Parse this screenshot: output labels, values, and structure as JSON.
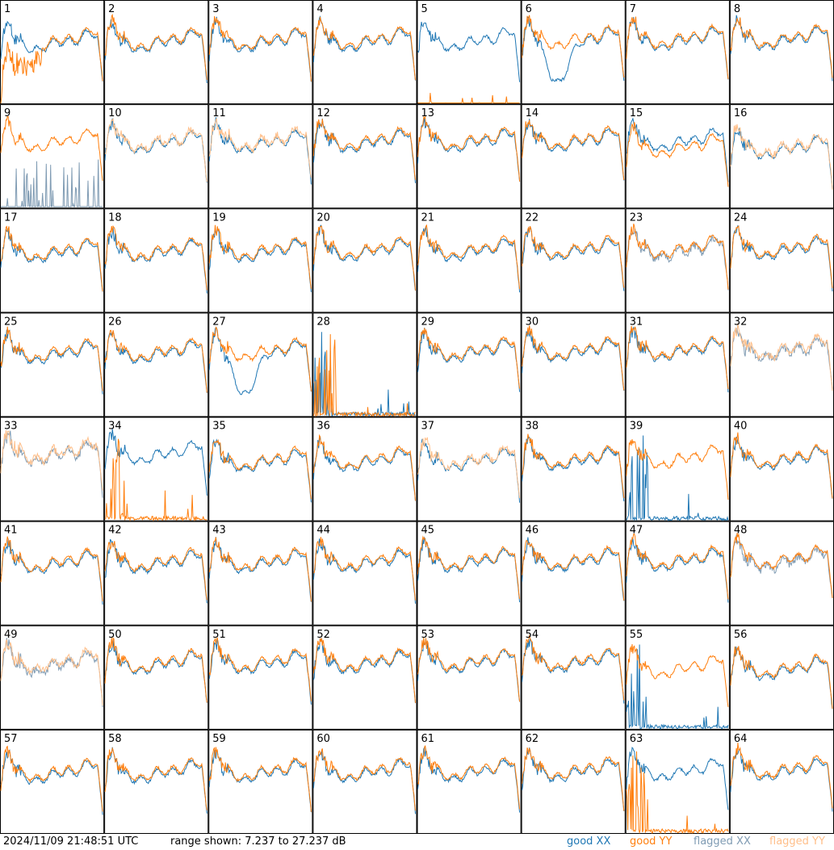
{
  "footer": {
    "timestamp": "2024/11/09 21:48:51 UTC",
    "range_label": "range shown: 7.237 to 27.237 dB"
  },
  "legend": [
    {
      "label": "good XX",
      "color": "#1f77b4"
    },
    {
      "label": "good YY",
      "color": "#ff7f0e"
    },
    {
      "label": "flagged XX",
      "color": "#7f9bb3"
    },
    {
      "label": "flagged YY",
      "color": "#ffbf8a"
    }
  ],
  "chart_data": {
    "type": "line",
    "grid_layout": "8x8",
    "y_range_db": [
      7.237,
      27.237
    ],
    "panels": [
      {
        "id": "1",
        "xx": "good",
        "yy": "good",
        "notes": "YY noisy and depressed left"
      },
      {
        "id": "2",
        "xx": "good",
        "yy": "good"
      },
      {
        "id": "3",
        "xx": "good",
        "yy": "good"
      },
      {
        "id": "4",
        "xx": "good",
        "yy": "good"
      },
      {
        "id": "5",
        "xx": "good",
        "yy": "good",
        "notes": "YY near zero"
      },
      {
        "id": "6",
        "xx": "good",
        "yy": "good",
        "notes": "XX deep dip"
      },
      {
        "id": "7",
        "xx": "good",
        "yy": "good"
      },
      {
        "id": "8",
        "xx": "good",
        "yy": "good"
      },
      {
        "id": "9",
        "xx": "flagged",
        "yy": "good"
      },
      {
        "id": "10",
        "xx": "good",
        "yy": "flagged"
      },
      {
        "id": "11",
        "xx": "good",
        "yy": "flagged"
      },
      {
        "id": "12",
        "xx": "good",
        "yy": "good"
      },
      {
        "id": "13",
        "xx": "good",
        "yy": "good"
      },
      {
        "id": "14",
        "xx": "good",
        "yy": "good"
      },
      {
        "id": "15",
        "xx": "good",
        "yy": "good"
      },
      {
        "id": "16",
        "xx": "good",
        "yy": "flagged"
      },
      {
        "id": "17",
        "xx": "good",
        "yy": "good"
      },
      {
        "id": "18",
        "xx": "good",
        "yy": "good"
      },
      {
        "id": "19",
        "xx": "good",
        "yy": "good"
      },
      {
        "id": "20",
        "xx": "good",
        "yy": "good"
      },
      {
        "id": "21",
        "xx": "good",
        "yy": "good"
      },
      {
        "id": "22",
        "xx": "good",
        "yy": "good"
      },
      {
        "id": "23",
        "xx": "flagged",
        "yy": "good"
      },
      {
        "id": "24",
        "xx": "good",
        "yy": "good"
      },
      {
        "id": "25",
        "xx": "good",
        "yy": "good"
      },
      {
        "id": "26",
        "xx": "good",
        "yy": "good"
      },
      {
        "id": "27",
        "xx": "good",
        "yy": "good",
        "notes": "XX deep dip"
      },
      {
        "id": "28",
        "xx": "good",
        "yy": "good",
        "notes": "spiky near zero"
      },
      {
        "id": "29",
        "xx": "good",
        "yy": "good"
      },
      {
        "id": "30",
        "xx": "good",
        "yy": "good"
      },
      {
        "id": "31",
        "xx": "good",
        "yy": "good"
      },
      {
        "id": "32",
        "xx": "flagged",
        "yy": "flagged"
      },
      {
        "id": "33",
        "xx": "flagged",
        "yy": "flagged"
      },
      {
        "id": "34",
        "xx": "good",
        "yy": "good",
        "notes": "YY spiky near zero"
      },
      {
        "id": "35",
        "xx": "good",
        "yy": "good"
      },
      {
        "id": "36",
        "xx": "good",
        "yy": "good"
      },
      {
        "id": "37",
        "xx": "good",
        "yy": "flagged"
      },
      {
        "id": "38",
        "xx": "good",
        "yy": "good"
      },
      {
        "id": "39",
        "xx": "good",
        "yy": "good",
        "notes": "XX spiky near zero"
      },
      {
        "id": "40",
        "xx": "good",
        "yy": "good"
      },
      {
        "id": "41",
        "xx": "good",
        "yy": "good"
      },
      {
        "id": "42",
        "xx": "good",
        "yy": "good"
      },
      {
        "id": "43",
        "xx": "good",
        "yy": "good"
      },
      {
        "id": "44",
        "xx": "good",
        "yy": "good"
      },
      {
        "id": "45",
        "xx": "good",
        "yy": "good"
      },
      {
        "id": "46",
        "xx": "good",
        "yy": "good"
      },
      {
        "id": "47",
        "xx": "good",
        "yy": "good"
      },
      {
        "id": "48",
        "xx": "flagged",
        "yy": "good"
      },
      {
        "id": "49",
        "xx": "flagged",
        "yy": "flagged"
      },
      {
        "id": "50",
        "xx": "good",
        "yy": "good"
      },
      {
        "id": "51",
        "xx": "good",
        "yy": "good"
      },
      {
        "id": "52",
        "xx": "good",
        "yy": "good"
      },
      {
        "id": "53",
        "xx": "good",
        "yy": "good"
      },
      {
        "id": "54",
        "xx": "good",
        "yy": "good"
      },
      {
        "id": "55",
        "xx": "good",
        "yy": "good",
        "notes": "XX spiky near zero"
      },
      {
        "id": "56",
        "xx": "good",
        "yy": "good"
      },
      {
        "id": "57",
        "xx": "good",
        "yy": "good"
      },
      {
        "id": "58",
        "xx": "good",
        "yy": "good"
      },
      {
        "id": "59",
        "xx": "good",
        "yy": "good"
      },
      {
        "id": "60",
        "xx": "good",
        "yy": "good"
      },
      {
        "id": "61",
        "xx": "good",
        "yy": "good"
      },
      {
        "id": "62",
        "xx": "good",
        "yy": "good"
      },
      {
        "id": "63",
        "xx": "good",
        "yy": "good",
        "notes": "YY spiky near zero"
      },
      {
        "id": "64",
        "xx": "good",
        "yy": "good"
      }
    ]
  }
}
